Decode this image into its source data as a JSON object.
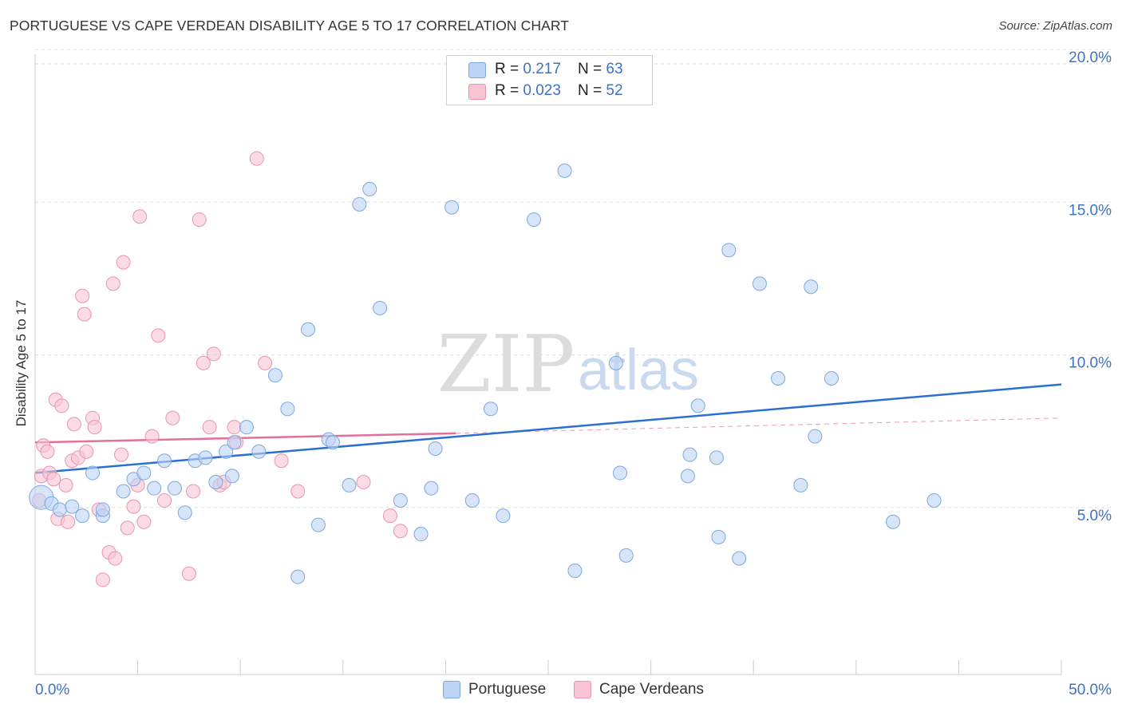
{
  "header": {
    "title": "PORTUGUESE VS CAPE VERDEAN DISABILITY AGE 5 TO 17 CORRELATION CHART",
    "source": "Source: ZipAtlas.com"
  },
  "legend_top": {
    "row1": {
      "r_label": "R = ",
      "r_value": "0.217",
      "n_label": "N = ",
      "n_value": "63"
    },
    "row2": {
      "r_label": "R = ",
      "r_value": "0.023",
      "n_label": "N = ",
      "n_value": "52"
    }
  },
  "legend_bottom": {
    "series1": "Portuguese",
    "series2": "Cape Verdeans"
  },
  "watermark": {
    "zip": "ZIP",
    "atlas": "atlas"
  },
  "colors": {
    "blue_fill": "#bcd4f5",
    "blue_stroke": "#7ea7de",
    "blue_line": "#2b6fd1",
    "pink_fill": "#f8c4d4",
    "pink_stroke": "#e995b0",
    "pink_line": "#e46f98",
    "axis_text": "#3d73c6"
  },
  "chart_data": {
    "type": "scatter",
    "title": "PORTUGUESE VS CAPE VERDEAN DISABILITY AGE 5 TO 17 CORRELATION CHART",
    "xlabel": "",
    "ylabel": "Disability Age 5 to 17",
    "xlim": [
      0,
      50
    ],
    "ylim": [
      0,
      20
    ],
    "x_tick_labels": [
      "0.0%",
      "50.0%"
    ],
    "y_ticks": [
      5,
      10,
      15,
      20
    ],
    "y_tick_labels": [
      "5.0%",
      "10.0%",
      "15.0%",
      "20.0%"
    ],
    "grid": true,
    "legend_position": "top-center",
    "series": [
      {
        "name": "Portuguese",
        "r": 0.217,
        "n": 63,
        "trend": {
          "x": [
            0,
            50
          ],
          "y": [
            6.6,
            9.5
          ]
        },
        "points": [
          [
            0.3,
            5.8
          ],
          [
            0.8,
            5.6
          ],
          [
            1.2,
            5.4
          ],
          [
            1.8,
            5.5
          ],
          [
            2.3,
            5.2
          ],
          [
            2.8,
            6.6
          ],
          [
            3.3,
            5.2
          ],
          [
            3.3,
            5.4
          ],
          [
            4.3,
            6.0
          ],
          [
            4.8,
            6.4
          ],
          [
            5.3,
            6.6
          ],
          [
            5.8,
            6.1
          ],
          [
            6.3,
            7.0
          ],
          [
            6.8,
            6.1
          ],
          [
            7.3,
            5.3
          ],
          [
            7.8,
            7.0
          ],
          [
            8.3,
            7.1
          ],
          [
            8.8,
            6.3
          ],
          [
            9.3,
            7.3
          ],
          [
            9.6,
            6.5
          ],
          [
            9.7,
            7.6
          ],
          [
            10.3,
            8.1
          ],
          [
            10.9,
            7.3
          ],
          [
            11.7,
            9.8
          ],
          [
            12.3,
            8.7
          ],
          [
            12.8,
            3.2
          ],
          [
            13.3,
            11.3
          ],
          [
            13.8,
            4.9
          ],
          [
            14.3,
            7.7
          ],
          [
            14.5,
            7.6
          ],
          [
            15.3,
            6.2
          ],
          [
            15.8,
            15.4
          ],
          [
            16.3,
            15.9
          ],
          [
            16.8,
            12.0
          ],
          [
            17.8,
            5.7
          ],
          [
            18.8,
            4.6
          ],
          [
            19.3,
            6.1
          ],
          [
            19.5,
            7.4
          ],
          [
            20.3,
            15.3
          ],
          [
            21.3,
            5.7
          ],
          [
            22.2,
            8.7
          ],
          [
            22.8,
            5.2
          ],
          [
            24.3,
            14.9
          ],
          [
            25.8,
            16.5
          ],
          [
            26.3,
            3.4
          ],
          [
            28.3,
            10.2
          ],
          [
            28.5,
            6.6
          ],
          [
            28.8,
            3.9
          ],
          [
            31.8,
            6.5
          ],
          [
            31.9,
            7.2
          ],
          [
            32.3,
            8.8
          ],
          [
            33.2,
            7.1
          ],
          [
            33.3,
            4.5
          ],
          [
            33.8,
            13.9
          ],
          [
            34.3,
            3.8
          ],
          [
            35.3,
            12.8
          ],
          [
            36.2,
            9.7
          ],
          [
            37.3,
            6.2
          ],
          [
            37.8,
            12.7
          ],
          [
            38.0,
            7.8
          ],
          [
            38.8,
            9.7
          ],
          [
            41.8,
            5.0
          ],
          [
            43.8,
            5.7
          ]
        ]
      },
      {
        "name": "Cape Verdeans",
        "r": 0.023,
        "n": 52,
        "trend": {
          "x": [
            0,
            20.5
          ],
          "y": [
            7.6,
            7.9
          ]
        },
        "trend_dashed": {
          "x": [
            20.5,
            50
          ],
          "y": [
            7.9,
            8.4
          ]
        },
        "points": [
          [
            0.2,
            5.7
          ],
          [
            0.3,
            6.5
          ],
          [
            0.4,
            7.5
          ],
          [
            0.6,
            7.3
          ],
          [
            0.7,
            6.6
          ],
          [
            0.9,
            6.4
          ],
          [
            1.0,
            9.0
          ],
          [
            1.1,
            5.1
          ],
          [
            1.3,
            8.8
          ],
          [
            1.5,
            6.2
          ],
          [
            1.6,
            5.0
          ],
          [
            1.8,
            7.0
          ],
          [
            1.9,
            8.2
          ],
          [
            2.1,
            7.1
          ],
          [
            2.3,
            12.4
          ],
          [
            2.4,
            11.8
          ],
          [
            2.5,
            7.3
          ],
          [
            2.8,
            8.4
          ],
          [
            2.9,
            8.1
          ],
          [
            3.1,
            5.4
          ],
          [
            3.3,
            3.1
          ],
          [
            3.6,
            4.0
          ],
          [
            3.8,
            12.8
          ],
          [
            3.9,
            3.8
          ],
          [
            4.2,
            7.2
          ],
          [
            4.3,
            13.5
          ],
          [
            4.5,
            4.8
          ],
          [
            4.8,
            5.5
          ],
          [
            5.0,
            6.2
          ],
          [
            5.1,
            15.0
          ],
          [
            5.3,
            5.0
          ],
          [
            5.7,
            7.8
          ],
          [
            6.0,
            11.1
          ],
          [
            6.3,
            5.7
          ],
          [
            6.7,
            8.4
          ],
          [
            7.5,
            3.3
          ],
          [
            7.7,
            6.0
          ],
          [
            8.0,
            14.9
          ],
          [
            8.2,
            10.2
          ],
          [
            8.5,
            8.1
          ],
          [
            8.7,
            10.5
          ],
          [
            9.0,
            6.2
          ],
          [
            9.2,
            6.3
          ],
          [
            9.7,
            8.1
          ],
          [
            9.8,
            7.6
          ],
          [
            10.8,
            16.9
          ],
          [
            11.2,
            10.2
          ],
          [
            12.0,
            7.0
          ],
          [
            12.8,
            6.0
          ],
          [
            16.0,
            6.3
          ],
          [
            17.3,
            5.2
          ],
          [
            17.8,
            4.7
          ]
        ]
      }
    ]
  }
}
